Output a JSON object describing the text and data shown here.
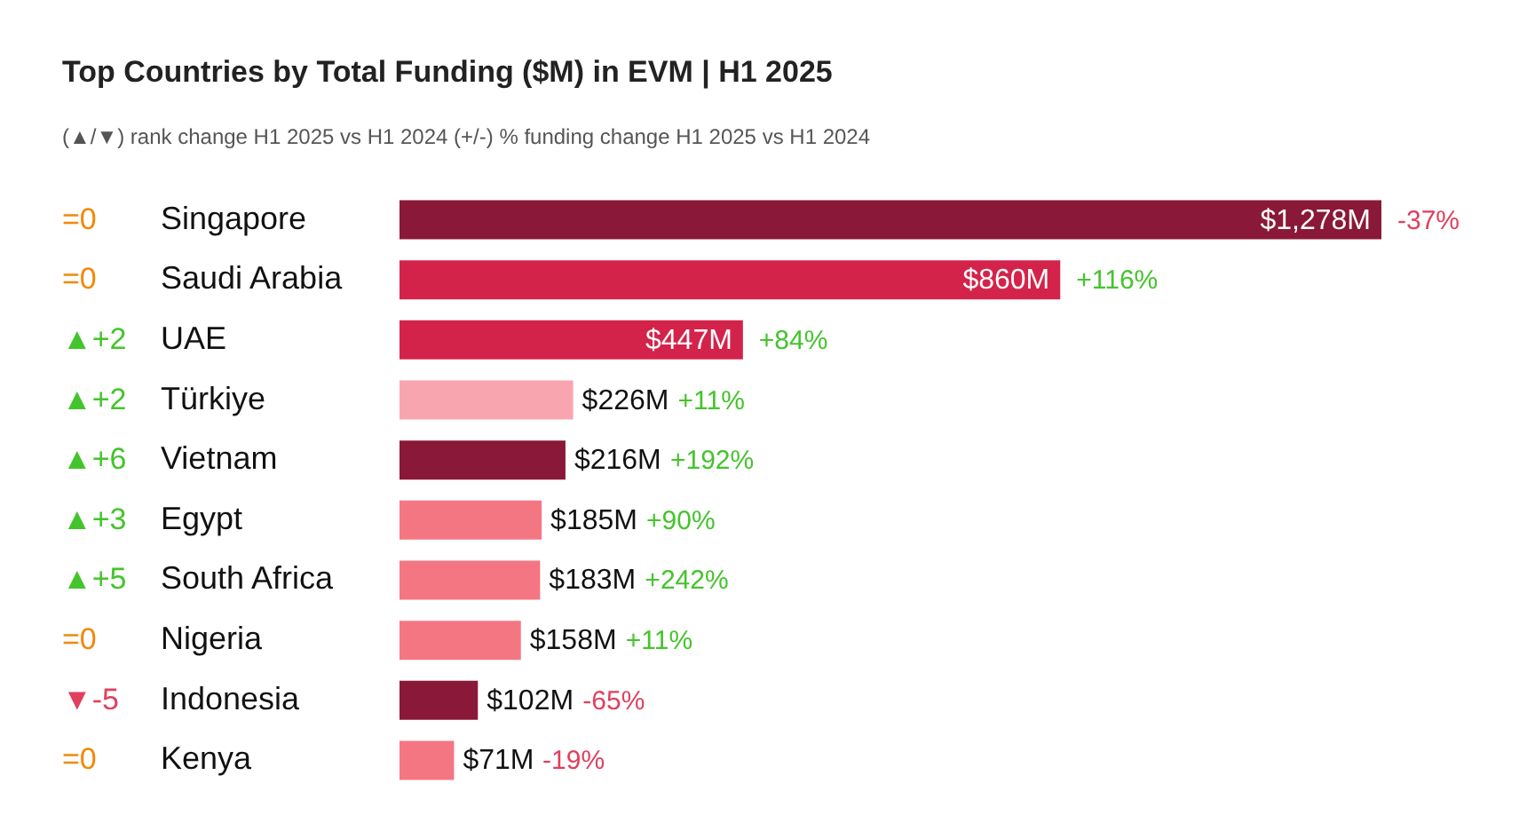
{
  "chart_data": {
    "type": "bar",
    "orientation": "horizontal",
    "title": "Top Countries by Total Funding ($M) in EVM | H1 2025",
    "subtitle": "(▲/▼) rank change H1 2025 vs H1 2024    (+/-) % funding change H1 2025 vs H1 2024",
    "categories": [
      "Singapore",
      "Saudi Arabia",
      "UAE",
      "Türkiye",
      "Vietnam",
      "Egypt",
      "South Africa",
      "Nigeria",
      "Indonesia",
      "Kenya"
    ],
    "values": [
      1278,
      860,
      447,
      226,
      216,
      185,
      183,
      158,
      102,
      71
    ],
    "colors": [
      "#8a1838",
      "#d4234a",
      "#d4234a",
      "#f9a5b0",
      "#8a1838",
      "#f47683",
      "#f47683",
      "#f47683",
      "#8a1838",
      "#f47683"
    ],
    "value_labels": [
      "$1,278M",
      "$860M",
      "$447M",
      "$226M",
      "$216M",
      "$185M",
      "$183M",
      "$158M",
      "$102M",
      "$71M"
    ],
    "annotations": [
      "=0",
      "=0",
      "▲+2",
      "▲+2",
      "▲+6",
      "▲+3",
      "▲+5",
      "=0",
      "▼-5",
      "=0",
      "-37%",
      "+116%",
      "+84%",
      "+11%",
      "+192%",
      "+90%",
      "+242%",
      "+11%",
      "-65%",
      "-19%"
    ],
    "tick_labels": "y",
    "grid": false
  }
}
